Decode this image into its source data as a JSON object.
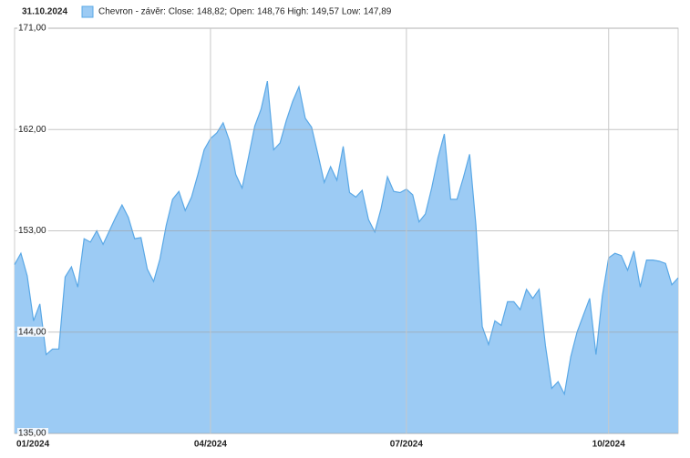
{
  "chart_data": {
    "type": "area",
    "date": "31.10.2024",
    "series": [
      {
        "name": "Chevron - závěr: Close: 148,82; Open: 148,76 High: 149,57 Low: 147,89",
        "color": "#9ccbf4",
        "line_color": "#5aa8e6",
        "values": [
          150.0,
          151.0,
          149.0,
          145.0,
          146.5,
          142.0,
          142.5,
          142.5,
          148.9,
          149.8,
          148.0,
          152.3,
          152.0,
          153.0,
          151.8,
          153.0,
          154.2,
          155.3,
          154.2,
          152.3,
          152.4,
          149.6,
          148.5,
          150.5,
          153.5,
          155.8,
          156.5,
          154.8,
          156.0,
          158.0,
          160.2,
          161.2,
          161.7,
          162.6,
          161.0,
          158.0,
          156.8,
          159.5,
          162.3,
          163.8,
          166.3,
          160.2,
          160.8,
          162.8,
          164.5,
          165.8,
          163.0,
          162.2,
          159.8,
          157.3,
          158.7,
          157.5,
          160.5,
          156.4,
          156.0,
          156.6,
          154.0,
          152.9,
          155.0,
          157.8,
          156.5,
          156.4,
          156.7,
          156.2,
          153.8,
          154.5,
          156.8,
          159.5,
          161.6,
          155.8,
          155.8,
          157.7,
          159.8,
          153.5,
          144.5,
          142.9,
          145.0,
          144.6,
          146.7,
          146.7,
          146.0,
          147.8,
          147.0,
          147.8,
          142.8,
          139.0,
          139.6,
          138.5,
          141.8,
          144.0,
          145.5,
          147.0,
          142.0,
          147.2,
          150.6,
          151.0,
          150.8,
          149.5,
          151.2,
          148.0,
          150.4,
          150.4,
          150.3,
          150.1,
          148.2,
          148.82
        ]
      }
    ],
    "categories": [
      "01/2024",
      null,
      null,
      null,
      null,
      null,
      null,
      null,
      null,
      null,
      null,
      null,
      null,
      null,
      null,
      null,
      null,
      null,
      null,
      null,
      null,
      null,
      null,
      null,
      null,
      null,
      null,
      null,
      null,
      null,
      null,
      "04/2024",
      null,
      null,
      null,
      null,
      null,
      null,
      null,
      null,
      null,
      null,
      null,
      null,
      null,
      null,
      null,
      null,
      null,
      null,
      null,
      null,
      null,
      null,
      null,
      null,
      null,
      null,
      null,
      null,
      null,
      null,
      "07/2024",
      null,
      null,
      null,
      null,
      null,
      null,
      null,
      null,
      null,
      null,
      null,
      null,
      null,
      null,
      null,
      null,
      null,
      null,
      null,
      null,
      null,
      null,
      null,
      null,
      null,
      null,
      null,
      null,
      null,
      null,
      null,
      "10/2024",
      null,
      null,
      null,
      null,
      null,
      null,
      null,
      null,
      null,
      null,
      null
    ],
    "ylim": [
      135,
      171
    ],
    "yticks": [
      {
        "value": 135,
        "label": "135,00"
      },
      {
        "value": 144,
        "label": "144,00"
      },
      {
        "value": 153,
        "label": "153,00"
      },
      {
        "value": 162,
        "label": "162,00"
      },
      {
        "value": 171,
        "label": "171,00"
      }
    ],
    "grid": true
  }
}
